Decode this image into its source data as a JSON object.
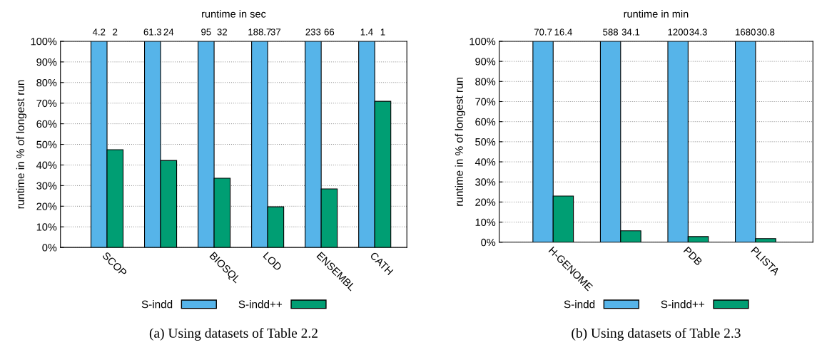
{
  "chart_data": [
    {
      "type": "bar",
      "title": "runtime in sec",
      "ylabel": "runtime in % of longest run",
      "categories": [
        "SCOP",
        null,
        "BIOSQL",
        "LOD",
        "ENSEMBL",
        "CATH"
      ],
      "series": [
        {
          "name": "S-indd",
          "color": "#56b4e9",
          "values": [
            100,
            100,
            100,
            100,
            100,
            100
          ]
        },
        {
          "name": "S-indd++",
          "color": "#009e73",
          "values": [
            47.4,
            42.2,
            33.6,
            19.7,
            28.4,
            70.9
          ]
        }
      ],
      "ylim": [
        0,
        100
      ],
      "yticks": [
        {
          "value": 0,
          "label": "0%"
        },
        {
          "value": 10,
          "label": "10%"
        },
        {
          "value": 20,
          "label": "20%"
        },
        {
          "value": 30,
          "label": "30%"
        },
        {
          "value": 40,
          "label": "40%"
        },
        {
          "value": 50,
          "label": "50%"
        },
        {
          "value": 60,
          "label": "60%"
        },
        {
          "value": 70,
          "label": "70%"
        },
        {
          "value": 80,
          "label": "80%"
        },
        {
          "value": 90,
          "label": "90%"
        },
        {
          "value": 100,
          "label": "100%"
        }
      ],
      "grid": "y",
      "legend": "bottom",
      "annotations": [
        "4.2",
        "2",
        "61.3",
        "24",
        "95",
        "32",
        "188.7",
        "37",
        "233",
        "66",
        "1.4",
        "1",
        "(a) Using datasets of Table 2.2"
      ]
    },
    {
      "type": "bar",
      "title": "runtime in min",
      "ylabel": "runtime in % of longest run",
      "categories": [
        "H-GENOME",
        null,
        "PDB",
        "PLISTA"
      ],
      "series": [
        {
          "name": "S-indd",
          "color": "#56b4e9",
          "values": [
            100,
            100,
            100,
            100
          ]
        },
        {
          "name": "S-indd++",
          "color": "#009e73",
          "values": [
            23.0,
            5.7,
            2.8,
            1.8
          ]
        }
      ],
      "ylim": [
        0,
        100
      ],
      "yticks": [
        {
          "value": 0,
          "label": "0%"
        },
        {
          "value": 10,
          "label": "10%"
        },
        {
          "value": 20,
          "label": "20%"
        },
        {
          "value": 30,
          "label": "30%"
        },
        {
          "value": 40,
          "label": "40%"
        },
        {
          "value": 50,
          "label": "50%"
        },
        {
          "value": 60,
          "label": "60%"
        },
        {
          "value": 70,
          "label": "70%"
        },
        {
          "value": 80,
          "label": "80%"
        },
        {
          "value": 90,
          "label": "90%"
        },
        {
          "value": 100,
          "label": "100%"
        }
      ],
      "grid": "y",
      "legend": "bottom",
      "annotations": [
        "70.7",
        "16.4",
        "588",
        "34.1",
        "1200",
        "34.3",
        "1680",
        "30.8",
        "(b) Using datasets of Table 2.3"
      ]
    }
  ]
}
